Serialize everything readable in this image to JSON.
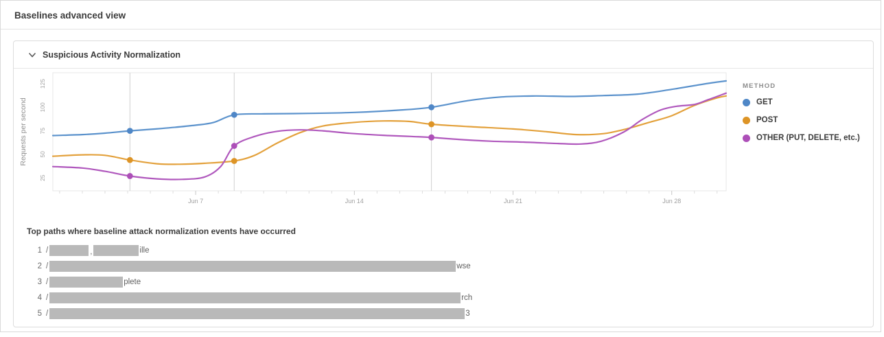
{
  "page": {
    "title": "Baselines advanced view"
  },
  "panel": {
    "title": "Suspicious Activity Normalization",
    "collapse_icon": "chevron-down"
  },
  "chart_data": {
    "type": "line",
    "title": "Suspicious Activity Normalization",
    "xlabel": "",
    "ylabel": "Requests per second",
    "yticks": [
      25,
      50,
      75,
      100,
      125
    ],
    "ylim": [
      10,
      136
    ],
    "x_unit": "day-of-June",
    "xlim_days": [
      0.7,
      30.4
    ],
    "xticks": [
      {
        "day": 7,
        "label": "Jun 7"
      },
      {
        "day": 14,
        "label": "Jun 14"
      },
      {
        "day": 21,
        "label": "Jun 21"
      },
      {
        "day": 28,
        "label": "Jun 28"
      }
    ],
    "grid": false,
    "legend_position": "right",
    "legend_title": "METHOD",
    "series": [
      {
        "name": "GET",
        "color": "#5b92cc",
        "dot_color": "#4f87c7",
        "points": [
          [
            0.7,
            70
          ],
          [
            2,
            71
          ],
          [
            3,
            72.5
          ],
          [
            4.1,
            75
          ],
          [
            5.5,
            77.5
          ],
          [
            7,
            81
          ],
          [
            7.8,
            84
          ],
          [
            8.7,
            92
          ],
          [
            10,
            93
          ],
          [
            12,
            93.5
          ],
          [
            14,
            94.5
          ],
          [
            16,
            97
          ],
          [
            17.4,
            100
          ],
          [
            19,
            107
          ],
          [
            20.5,
            111
          ],
          [
            22,
            112
          ],
          [
            23.5,
            111.5
          ],
          [
            25,
            112.5
          ],
          [
            26.5,
            114
          ],
          [
            28,
            119
          ],
          [
            29.5,
            125
          ],
          [
            30.4,
            128
          ]
        ]
      },
      {
        "name": "POST",
        "color": "#e3a13c",
        "dot_color": "#dd9426",
        "points": [
          [
            0.7,
            48
          ],
          [
            2,
            49.5
          ],
          [
            3,
            49
          ],
          [
            4.1,
            44
          ],
          [
            5.3,
            40
          ],
          [
            6.3,
            39.5
          ],
          [
            7.4,
            40.5
          ],
          [
            8.7,
            43
          ],
          [
            9.6,
            49
          ],
          [
            10.6,
            62
          ],
          [
            11.6,
            73
          ],
          [
            12.6,
            80
          ],
          [
            14,
            84
          ],
          [
            15.3,
            85.5
          ],
          [
            16.4,
            85
          ],
          [
            17.4,
            82
          ],
          [
            19,
            79.5
          ],
          [
            21,
            77
          ],
          [
            22.5,
            74
          ],
          [
            23.8,
            71
          ],
          [
            25,
            72
          ],
          [
            26,
            77
          ],
          [
            27,
            84
          ],
          [
            28,
            91
          ],
          [
            29,
            102
          ],
          [
            30,
            110
          ],
          [
            30.4,
            112
          ]
        ]
      },
      {
        "name": "OTHER (PUT, DELETE, etc.)",
        "color": "#b058bd",
        "dot_color": "#ad4fb8",
        "points": [
          [
            0.7,
            37
          ],
          [
            2,
            35.5
          ],
          [
            3,
            32
          ],
          [
            4.1,
            27
          ],
          [
            5.3,
            24
          ],
          [
            6.4,
            23.5
          ],
          [
            7.4,
            26
          ],
          [
            8.1,
            37
          ],
          [
            8.7,
            59
          ],
          [
            9.6,
            69
          ],
          [
            10.6,
            74.5
          ],
          [
            11.6,
            76
          ],
          [
            12.6,
            75
          ],
          [
            14,
            72
          ],
          [
            15.5,
            70
          ],
          [
            16.5,
            69
          ],
          [
            17.4,
            68
          ],
          [
            18.5,
            66
          ],
          [
            20,
            64
          ],
          [
            21.5,
            63
          ],
          [
            23,
            61.5
          ],
          [
            24,
            61
          ],
          [
            24.9,
            64
          ],
          [
            25.9,
            74
          ],
          [
            26.7,
            87
          ],
          [
            27.5,
            97
          ],
          [
            28.2,
            101
          ],
          [
            29,
            103
          ],
          [
            29.6,
            108
          ],
          [
            30.4,
            115
          ]
        ]
      }
    ],
    "event_markers": [
      {
        "day": 4.1,
        "values": {
          "GET": 75,
          "POST": 44,
          "OTHER (PUT, DELETE, etc.)": 27
        }
      },
      {
        "day": 8.7,
        "values": {
          "GET": 92,
          "POST": 43,
          "OTHER (PUT, DELETE, etc.)": 59
        }
      },
      {
        "day": 17.4,
        "values": {
          "GET": 100,
          "POST": 82,
          "OTHER (PUT, DELETE, etc.)": 68
        }
      }
    ]
  },
  "paths_section": {
    "heading": "Top paths where baseline attack normalization events have occurred",
    "rows": [
      {
        "num": "1",
        "prefix": "/",
        "redacted_widths": [
          57,
          66
        ],
        "separator": ",",
        "suffix": "ille"
      },
      {
        "num": "2",
        "prefix": "/",
        "redacted_widths": [
          592
        ],
        "separator": "",
        "suffix": "wse"
      },
      {
        "num": "3",
        "prefix": "/",
        "redacted_widths": [
          107
        ],
        "separator": "",
        "suffix": "plete"
      },
      {
        "num": "4",
        "prefix": "/",
        "redacted_widths": [
          599
        ],
        "separator": "",
        "suffix": "rch"
      },
      {
        "num": "5",
        "prefix": "/",
        "redacted_widths": [
          605
        ],
        "separator": "",
        "suffix": "3"
      }
    ]
  },
  "colors": {
    "border": "#dcdcdc",
    "plot_border": "#e7e7e7",
    "event_line": "#cfcfcf",
    "axis_text": "#a0a0a0",
    "redaction": "#b9b9b9"
  }
}
